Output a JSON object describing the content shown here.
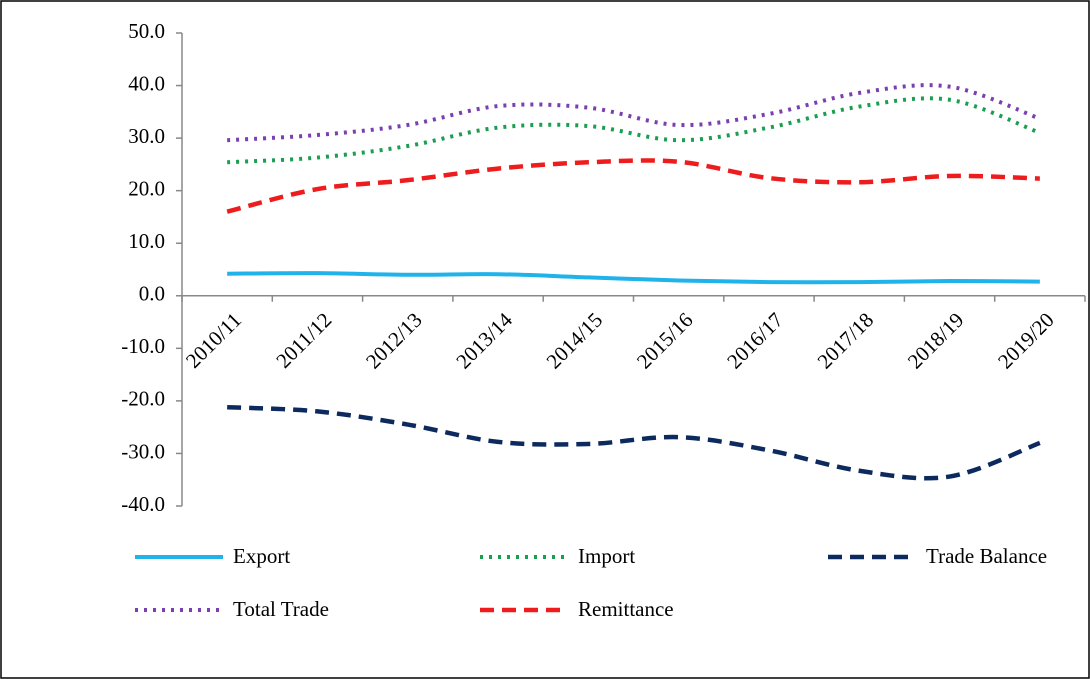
{
  "chart_data": {
    "type": "line",
    "categories": [
      "2010/11",
      "2011/12",
      "2012/13",
      "2013/14",
      "2014/15",
      "2015/16",
      "2016/17",
      "2017/18",
      "2018/19",
      "2019/20"
    ],
    "series": [
      {
        "name": "Export",
        "color": "#1fb3ea",
        "style": "solid",
        "values": [
          4.2,
          4.3,
          4.0,
          4.1,
          3.5,
          2.9,
          2.6,
          2.6,
          2.8,
          2.7
        ]
      },
      {
        "name": "Import",
        "color": "#1a9e50",
        "style": "dotted",
        "values": [
          25.4,
          26.3,
          28.5,
          32.0,
          32.3,
          29.6,
          32.0,
          36.0,
          37.3,
          31.0
        ]
      },
      {
        "name": "Trade Balance",
        "color": "#0d2a5e",
        "style": "dashed",
        "values": [
          -21.2,
          -22.0,
          -24.5,
          -27.8,
          -28.2,
          -26.9,
          -29.4,
          -33.3,
          -34.4,
          -28.0
        ]
      },
      {
        "name": "Total Trade",
        "color": "#7a3fb0",
        "style": "dotted",
        "values": [
          29.6,
          30.6,
          32.5,
          36.1,
          35.8,
          32.5,
          34.6,
          38.6,
          39.8,
          33.7
        ]
      },
      {
        "name": "Remittance",
        "color": "#ee1c1c",
        "style": "dashed",
        "values": [
          16.0,
          20.3,
          22.0,
          24.2,
          25.4,
          25.5,
          22.4,
          21.6,
          22.8,
          22.3
        ]
      }
    ],
    "ylim": [
      -40,
      50
    ],
    "yticks": [
      {
        "value": -40,
        "label": "-40.0"
      },
      {
        "value": -30,
        "label": "-30.0"
      },
      {
        "value": -20,
        "label": "-20.0"
      },
      {
        "value": -10,
        "label": "-10.0"
      },
      {
        "value": 0,
        "label": "0.0"
      },
      {
        "value": 10,
        "label": "10.0"
      },
      {
        "value": 20,
        "label": "20.0"
      },
      {
        "value": 30,
        "label": "30.0"
      },
      {
        "value": 40,
        "label": "40.0"
      },
      {
        "value": 50,
        "label": "50.0"
      }
    ],
    "grid": false
  }
}
